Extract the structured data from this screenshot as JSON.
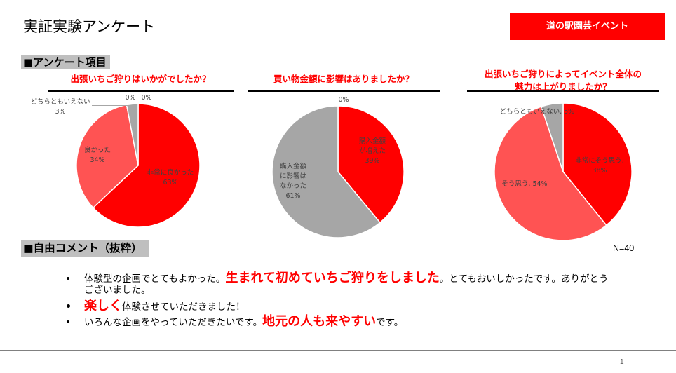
{
  "slide": {
    "title": "実証実験アンケート",
    "badge": "道の駅園芸イベント",
    "page_number": "1"
  },
  "survey": {
    "heading": "■アンケート項目"
  },
  "comments": {
    "heading": "■自由コメント（抜粋）",
    "sample_size": "N=40",
    "items": [
      {
        "text": "体験型の企画でとてもよかった。",
        "highlight": "生まれて初めていちご狩りをしました",
        "text_after": "。とてもおいしかったです。ありがとうございました。"
      },
      {
        "highlight": "楽しく",
        "text_after": "体験させていただきました！"
      },
      {
        "text": "いろんな企画をやっていただきたいです。",
        "highlight": "地元の人も来やすい",
        "text_after": "です。"
      }
    ]
  },
  "colors": {
    "accent": "#ff0000",
    "section_heading_bg": "#bfbfbf"
  },
  "chart_data": [
    {
      "type": "pie",
      "title": "出張いちご狩りはいかがでしたか？",
      "categories": [
        "非常に良かった",
        "良かった",
        "どちらともいえない",
        "",
        ""
      ],
      "values": [
        63,
        34,
        3,
        0,
        0
      ],
      "value_labels": [
        "63%",
        "34%",
        "3%",
        "0%",
        "0%"
      ],
      "colors": [
        "#ff0000",
        "#ff5353",
        "#a6a6a6"
      ]
    },
    {
      "type": "pie",
      "title": "買い物金額に影響はありましたか？",
      "categories": [
        "購入金額が増えた",
        "購入金額に影響はなかった",
        ""
      ],
      "values": [
        39,
        61,
        0
      ],
      "value_labels": [
        "39%",
        "61%",
        "0%"
      ],
      "colors": [
        "#ff0000",
        "#a6a6a6"
      ]
    },
    {
      "type": "pie",
      "title": "出張いちご狩りによってイベント全体の魅力は上がりましたか？",
      "categories": [
        "非常にそう思う",
        "そう思う",
        "どちらともいえない"
      ],
      "values": [
        38,
        54,
        5
      ],
      "value_labels": [
        "38%",
        "54%",
        "5%"
      ],
      "label_separator": ", ",
      "colors": [
        "#ff0000",
        "#ff5353",
        "#a6a6a6"
      ]
    }
  ]
}
